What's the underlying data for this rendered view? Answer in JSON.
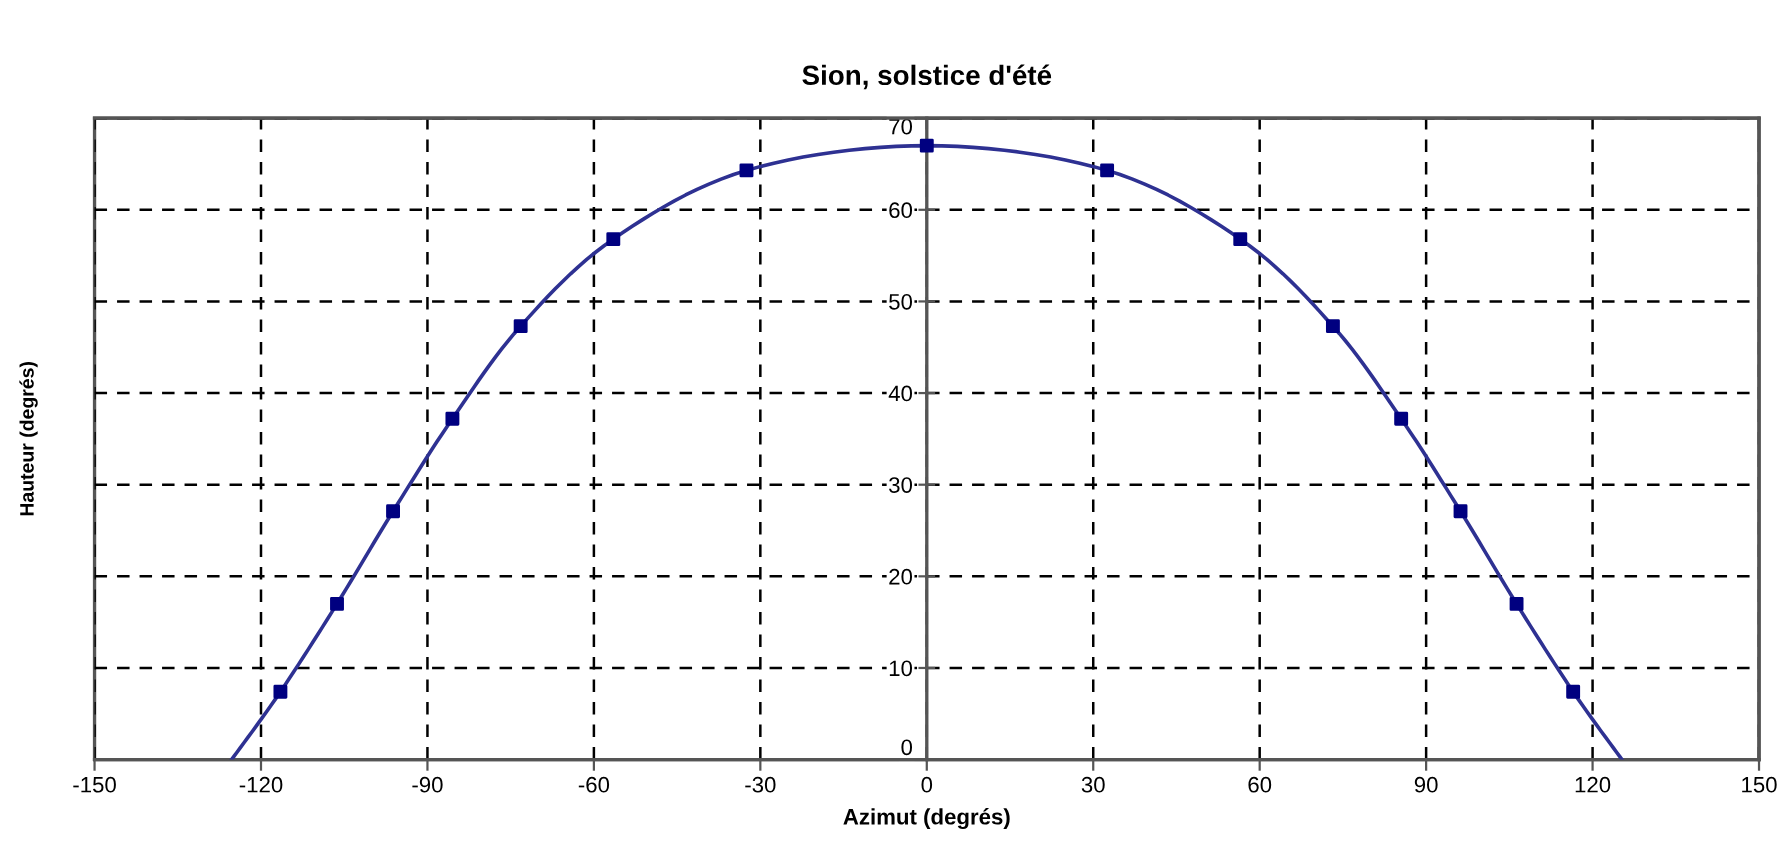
{
  "chart_data": {
    "type": "line",
    "title": "Sion, solstice d'été",
    "xlabel": "Azimut (degrés)",
    "ylabel": "Hauteur (degrés)",
    "series": [
      {
        "type": "line",
        "color": "#2e3192",
        "marker": "none",
        "x": [
          -125.3,
          -116.5,
          -106.3,
          -96.2,
          -85.5,
          -73.2,
          -56.5,
          -32.5,
          0,
          32.5,
          56.5,
          73.2,
          85.5,
          96.2,
          106.3,
          116.5,
          125.3
        ],
        "values": [
          0,
          7.4,
          17.0,
          27.1,
          37.2,
          47.3,
          56.8,
          64.3,
          67.0,
          64.3,
          56.8,
          47.3,
          37.2,
          27.1,
          17.0,
          7.4,
          0
        ]
      },
      {
        "type": "scatter",
        "color": "#000080",
        "marker": "square",
        "x": [
          -116.5,
          -106.3,
          -96.2,
          -85.5,
          -73.2,
          -56.5,
          -32.5,
          0,
          32.5,
          56.5,
          73.2,
          85.5,
          96.2,
          106.3,
          116.5
        ],
        "values": [
          7.4,
          17.0,
          27.1,
          37.2,
          47.3,
          56.8,
          64.3,
          67.0,
          64.3,
          56.8,
          47.3,
          37.2,
          27.1,
          17.0,
          7.4
        ]
      }
    ],
    "xlim": [
      -150,
      150
    ],
    "xticks": [
      -150,
      -120,
      -90,
      -60,
      -30,
      0,
      30,
      60,
      90,
      120,
      150
    ],
    "ylim": [
      0,
      70
    ],
    "yticks": [
      0,
      10,
      20,
      30,
      40,
      50,
      60,
      70
    ],
    "grid": true,
    "line_style": "solid"
  }
}
